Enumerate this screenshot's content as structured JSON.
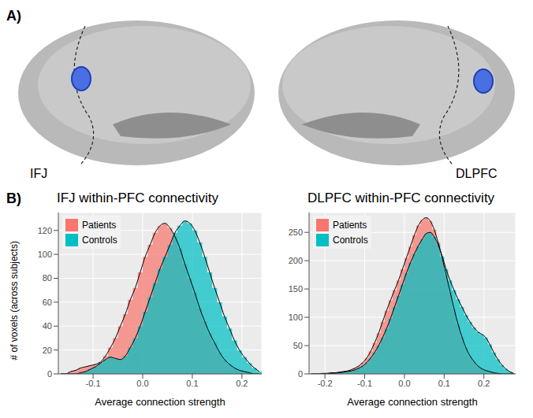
{
  "panels": {
    "A": {
      "label": "A)",
      "regions": [
        "IFJ",
        "DLPFC"
      ]
    },
    "B": {
      "label": "B)"
    }
  },
  "chart_data": [
    {
      "type": "histogram",
      "title": "IFJ within-PFC connectivity",
      "x_label": "Average connection strength",
      "y_label": "# of voxels (across subjects)",
      "bins": [
        -0.17,
        -0.16,
        -0.15,
        -0.14,
        -0.13,
        -0.12,
        -0.11,
        -0.1,
        -0.09,
        -0.08,
        -0.07,
        -0.06,
        -0.05,
        -0.04,
        -0.03,
        -0.02,
        -0.01,
        0.0,
        0.01,
        0.02,
        0.03,
        0.04,
        0.05,
        0.06,
        0.07,
        0.08,
        0.09,
        0.1,
        0.11,
        0.12,
        0.13,
        0.14,
        0.15,
        0.16,
        0.17,
        0.18,
        0.19,
        0.2,
        0.21,
        0.22,
        0.23,
        0.24
      ],
      "series": [
        {
          "name": "Patients",
          "color": "#f8766d",
          "values": [
            0,
            0,
            2,
            3,
            5,
            6,
            7,
            8,
            10,
            15,
            22,
            30,
            40,
            50,
            62,
            72,
            85,
            98,
            108,
            118,
            124,
            126,
            122,
            115,
            105,
            92,
            80,
            68,
            55,
            44,
            34,
            26,
            18,
            12,
            8,
            5,
            3,
            2,
            1,
            0,
            0
          ]
        },
        {
          "name": "Controls",
          "color": "#00bfc4",
          "values": [
            0,
            0,
            0,
            0,
            1,
            2,
            4,
            6,
            9,
            12,
            14,
            13,
            12,
            15,
            22,
            30,
            40,
            52,
            64,
            76,
            88,
            98,
            108,
            118,
            124,
            128,
            126,
            120,
            110,
            98,
            85,
            72,
            60,
            48,
            38,
            28,
            20,
            14,
            9,
            5,
            2
          ]
        }
      ],
      "xlim": [
        -0.17,
        0.24
      ],
      "xticks": [
        -0.1,
        {
          "value": 0,
          "label": "0.0"
        },
        0.1,
        0.2
      ],
      "ylim": [
        0,
        135
      ],
      "yticks": [
        0,
        20,
        40,
        60,
        80,
        100,
        120
      ],
      "grid": true,
      "legend": "top-left"
    },
    {
      "type": "histogram",
      "title": "DLPFC within-PFC connectivity",
      "x_label": "Average connection strength",
      "bins": [
        -0.24,
        -0.23,
        -0.22,
        -0.21,
        -0.2,
        -0.19,
        -0.18,
        -0.17,
        -0.16,
        -0.15,
        -0.14,
        -0.13,
        -0.12,
        -0.11,
        -0.1,
        -0.09,
        -0.08,
        -0.07,
        -0.06,
        -0.05,
        -0.04,
        -0.03,
        -0.02,
        -0.01,
        0.0,
        0.01,
        0.02,
        0.03,
        0.04,
        0.05,
        0.06,
        0.07,
        0.08,
        0.09,
        0.1,
        0.11,
        0.12,
        0.13,
        0.14,
        0.15,
        0.16,
        0.17,
        0.18,
        0.19,
        0.2,
        0.21,
        0.22,
        0.23,
        0.24,
        0.25,
        0.26,
        0.27,
        0.28
      ],
      "series": [
        {
          "name": "Patients",
          "color": "#f8766d",
          "values": [
            0,
            0,
            0,
            1,
            1,
            2,
            2,
            3,
            4,
            5,
            7,
            10,
            14,
            20,
            28,
            40,
            55,
            72,
            92,
            112,
            130,
            148,
            165,
            185,
            205,
            225,
            245,
            262,
            272,
            276,
            270,
            255,
            232,
            205,
            175,
            145,
            115,
            88,
            65,
            46,
            32,
            22,
            14,
            9,
            6,
            4,
            2,
            1,
            0,
            0,
            0,
            0
          ]
        },
        {
          "name": "Controls",
          "color": "#00bfc4",
          "values": [
            0,
            0,
            0,
            0,
            0,
            1,
            1,
            2,
            3,
            4,
            5,
            7,
            10,
            14,
            20,
            28,
            38,
            50,
            64,
            80,
            98,
            118,
            138,
            158,
            178,
            196,
            212,
            226,
            238,
            248,
            250,
            242,
            228,
            208,
            185,
            165,
            148,
            132,
            118,
            104,
            92,
            82,
            74,
            70,
            64,
            52,
            38,
            26,
            16,
            9,
            4,
            1
          ]
        }
      ],
      "xlim": [
        -0.24,
        0.28
      ],
      "xticks": [
        -0.2,
        -0.1,
        {
          "value": 0,
          "label": "0.0"
        },
        0.1,
        0.2
      ],
      "ylim": [
        0,
        285
      ],
      "yticks": [
        0,
        50,
        100,
        150,
        200,
        250
      ],
      "grid": true,
      "legend": "top-left"
    }
  ]
}
